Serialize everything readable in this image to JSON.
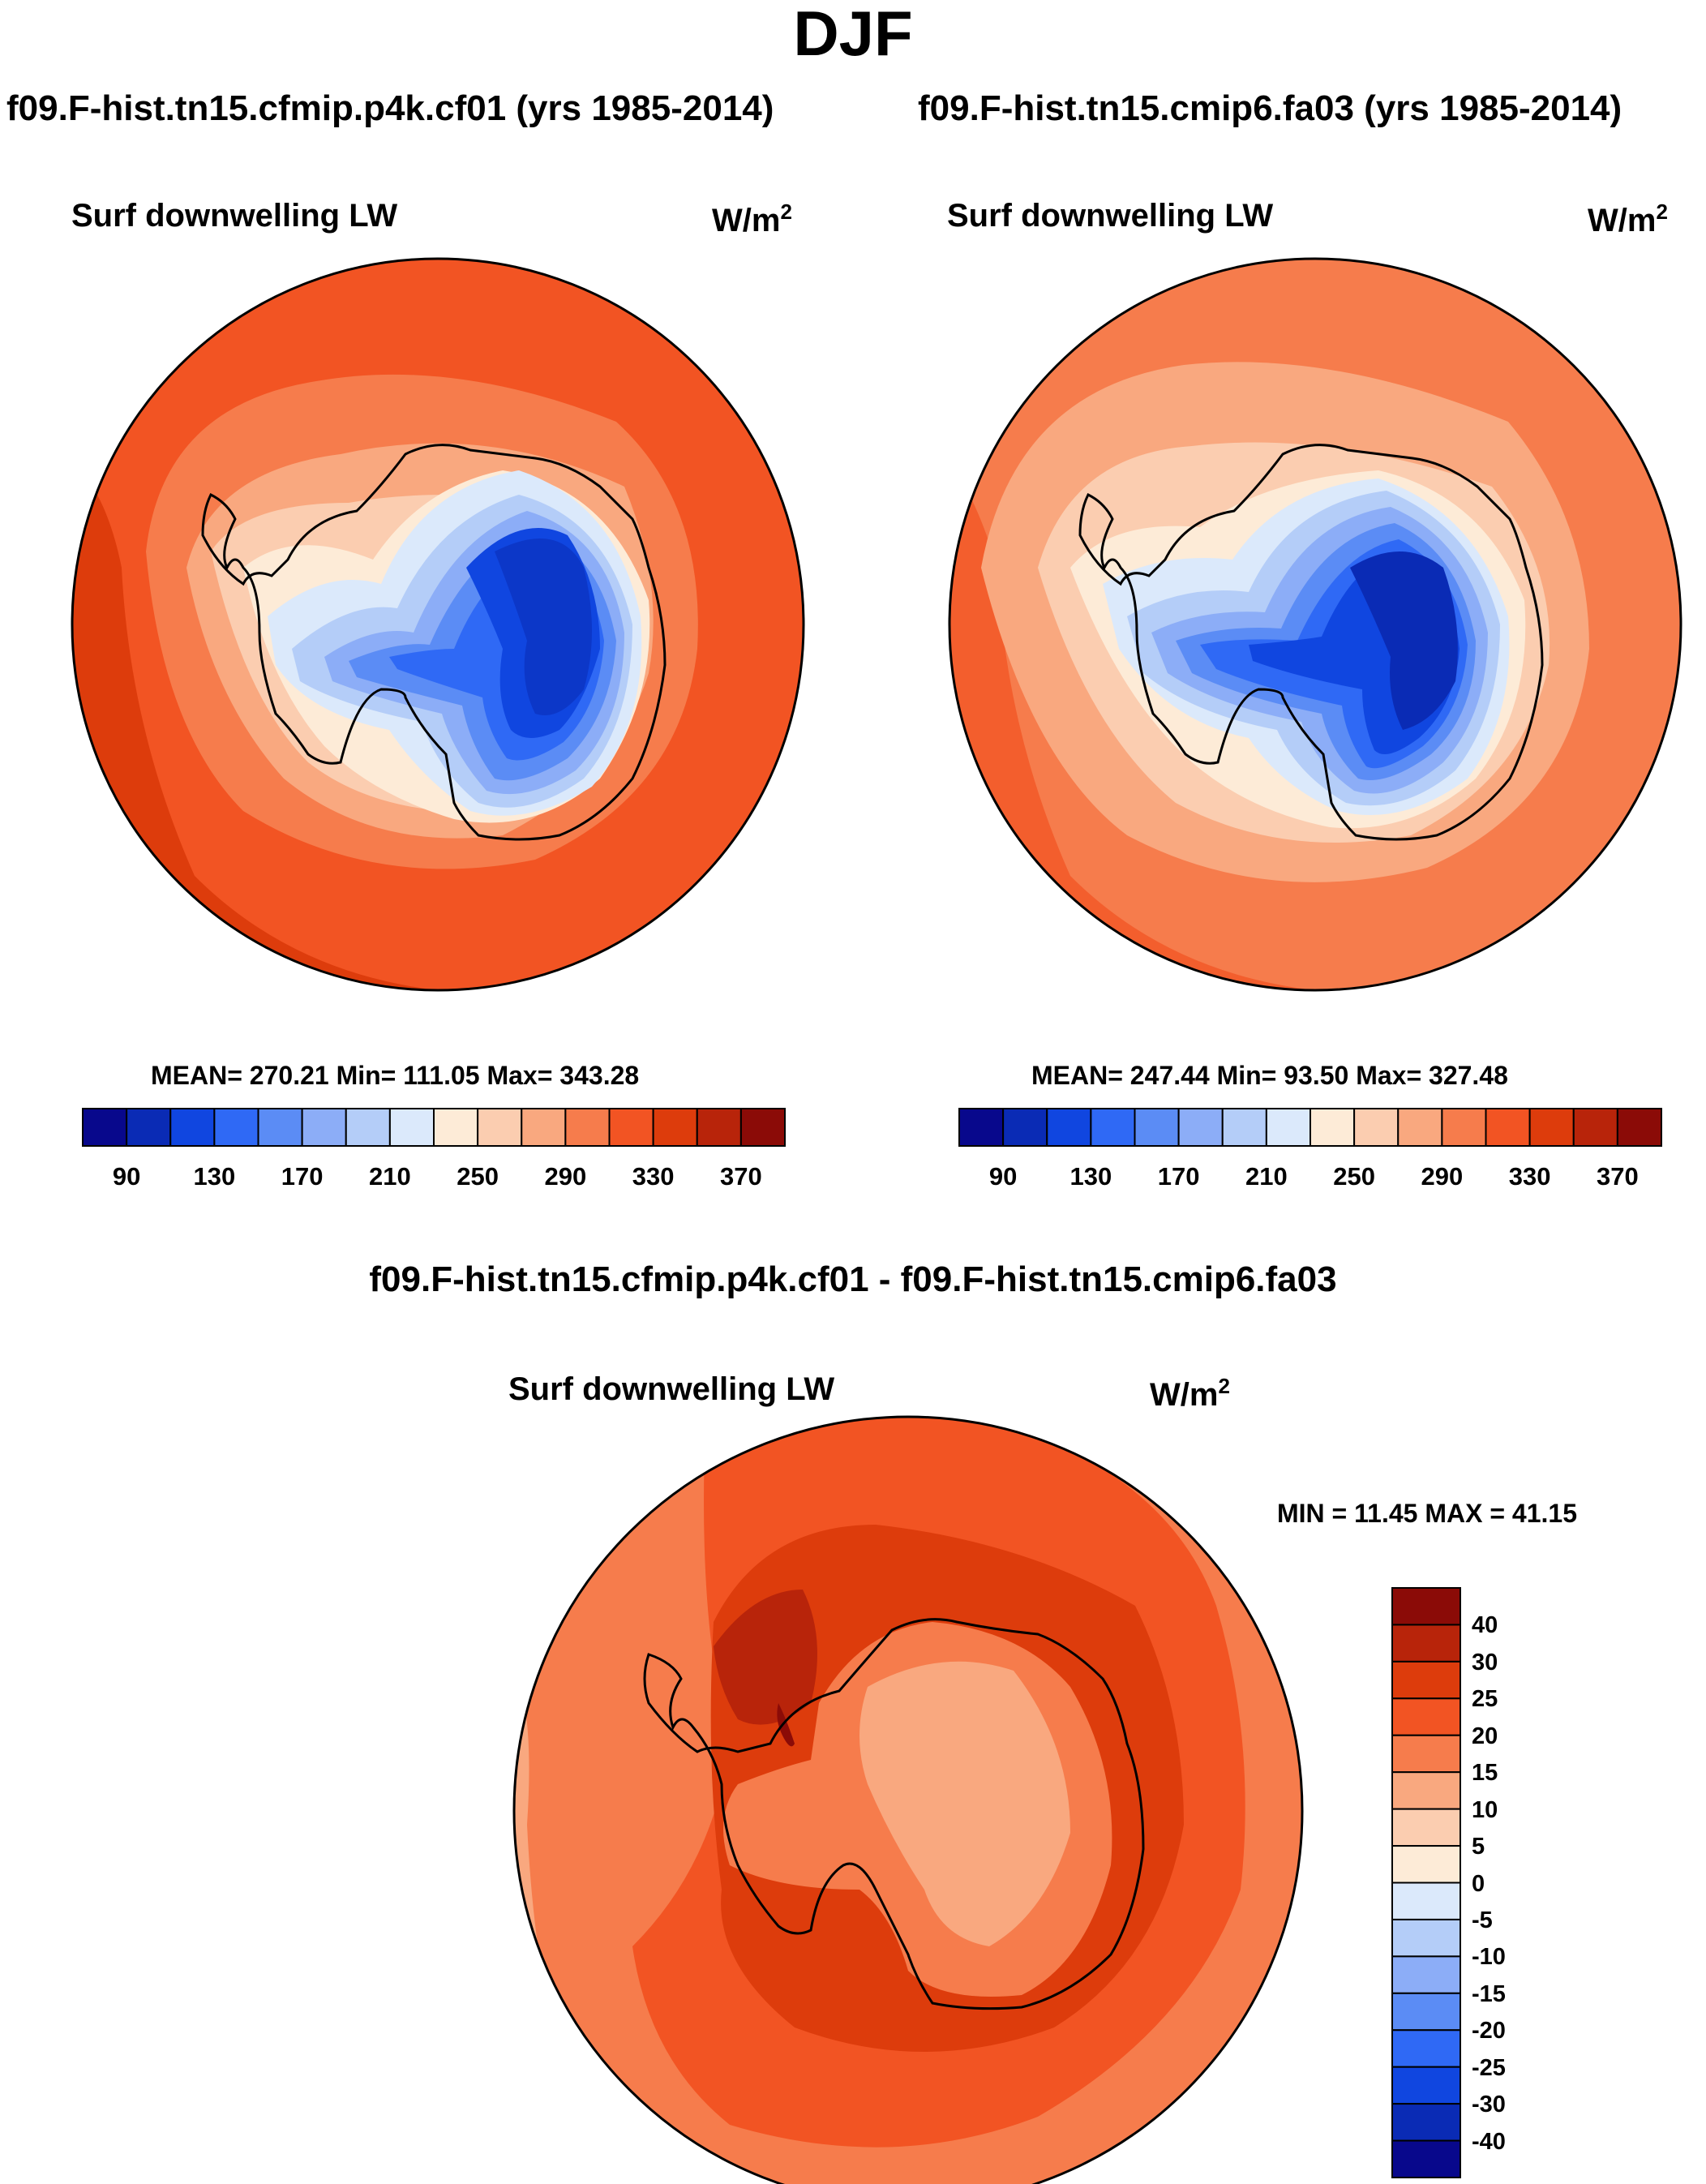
{
  "season": "DJF",
  "panels": [
    {
      "run": "f09.F-hist.tn15.cfmip.p4k.cf01 (yrs 1985-2014)",
      "variable": "Surf downwelling LW",
      "units_base": "W/m",
      "units_exp": "2",
      "stats": "MEAN= 270.21  Min= 111.05  Max= 343.28"
    },
    {
      "run": "f09.F-hist.tn15.cmip6.fa03 (yrs 1985-2014)",
      "variable": "Surf downwelling LW",
      "units_base": "W/m",
      "units_exp": "2",
      "stats": "MEAN= 247.44  Min=  93.50  Max= 327.48"
    }
  ],
  "diff": {
    "title": "f09.F-hist.tn15.cfmip.p4k.cf01 - f09.F-hist.tn15.cmip6.fa03",
    "variable": "Surf downwelling LW",
    "units_base": "W/m",
    "units_exp": "2",
    "stats": "MIN =  11.45 MAX =  41.15"
  },
  "colorbar_abs": {
    "colors": [
      "#08088c",
      "#0a2bb5",
      "#1046e0",
      "#2f69f5",
      "#5b8cf5",
      "#8cadf7",
      "#b4cdf8",
      "#dbe9fb",
      "#fdebd7",
      "#fbcdb0",
      "#f9a87f",
      "#f67c4c",
      "#f25423",
      "#dd3c0c",
      "#b8240a",
      "#8b0b07"
    ],
    "labels": [
      "90",
      "130",
      "170",
      "210",
      "250",
      "290",
      "330",
      "370"
    ]
  },
  "colorbar_diff": {
    "colors": [
      "#8b0b07",
      "#b8240a",
      "#dd3c0c",
      "#f25423",
      "#f67c4c",
      "#f9a87f",
      "#fbcdb0",
      "#fdebd7",
      "#dbe9fb",
      "#b4cdf8",
      "#8cadf7",
      "#5b8cf5",
      "#2f69f5",
      "#1046e0",
      "#0a2bb5",
      "#08088c"
    ],
    "labels": [
      "40",
      "30",
      "25",
      "20",
      "15",
      "10",
      "5",
      "0",
      "-5",
      "-10",
      "-15",
      "-20",
      "-25",
      "-30",
      "-40"
    ]
  },
  "chart_data": [
    {
      "type": "heatmap",
      "projection": "south polar stereographic",
      "title": "f09.F-hist.tn15.cfmip.p4k.cf01 (yrs 1985-2014)",
      "variable": "Surf downwelling LW",
      "units": "W/m2",
      "contour_levels": [
        90,
        110,
        130,
        150,
        170,
        190,
        210,
        230,
        250,
        270,
        290,
        310,
        330,
        350,
        370
      ],
      "mean": 270.21,
      "min": 111.05,
      "max": 343.28
    },
    {
      "type": "heatmap",
      "projection": "south polar stereographic",
      "title": "f09.F-hist.tn15.cmip6.fa03 (yrs 1985-2014)",
      "variable": "Surf downwelling LW",
      "units": "W/m2",
      "contour_levels": [
        90,
        110,
        130,
        150,
        170,
        190,
        210,
        230,
        250,
        270,
        290,
        310,
        330,
        350,
        370
      ],
      "mean": 247.44,
      "min": 93.5,
      "max": 327.48
    },
    {
      "type": "heatmap",
      "projection": "south polar stereographic",
      "title": "f09.F-hist.tn15.cfmip.p4k.cf01 - f09.F-hist.tn15.cmip6.fa03",
      "variable": "Surf downwelling LW",
      "units": "W/m2",
      "contour_levels": [
        -40,
        -30,
        -25,
        -20,
        -15,
        -10,
        -5,
        0,
        5,
        10,
        15,
        20,
        25,
        30,
        40
      ],
      "min": 11.45,
      "max": 41.15
    }
  ]
}
